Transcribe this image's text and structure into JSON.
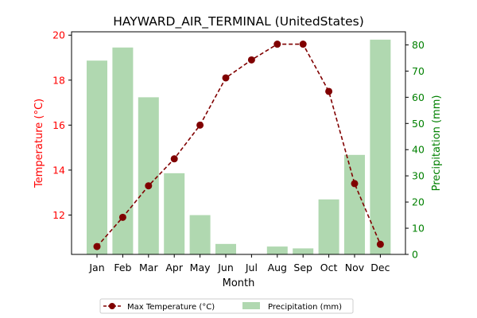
{
  "chart_data": {
    "type": "bar+line",
    "title": "HAYWARD_AIR_TERMINAL (UnitedStates)",
    "xlabel": "Month",
    "categories": [
      "Jan",
      "Feb",
      "Mar",
      "Apr",
      "May",
      "Jun",
      "Jul",
      "Aug",
      "Sep",
      "Oct",
      "Nov",
      "Dec"
    ],
    "series": [
      {
        "name": "Max Temperature (°C)",
        "kind": "line",
        "axis": "left",
        "color": "#800000",
        "values": [
          10.6,
          11.9,
          13.3,
          14.5,
          16.0,
          18.1,
          18.9,
          19.6,
          19.6,
          17.5,
          13.4,
          10.7
        ]
      },
      {
        "name": "Precipitation (mm)",
        "kind": "bar",
        "axis": "right",
        "color": "#b0d8b0",
        "values": [
          74,
          79,
          60,
          31,
          15,
          4,
          0,
          3,
          2.3,
          21,
          38,
          82
        ]
      }
    ],
    "left_axis": {
      "label": "Temperature (°C)",
      "color": "#ff0000",
      "ylim": [
        10.25,
        20.15
      ],
      "ticks": [
        12,
        14,
        16,
        18,
        20
      ]
    },
    "right_axis": {
      "label": "Precipitation (mm)",
      "color": "#008000",
      "ylim": [
        0,
        85
      ],
      "ticks": [
        0,
        10,
        20,
        30,
        40,
        50,
        60,
        70,
        80
      ]
    },
    "legend": {
      "placement": "bottom-center",
      "items": [
        "Max Temperature (°C)",
        "Precipitation (mm)"
      ]
    },
    "grid": false
  }
}
